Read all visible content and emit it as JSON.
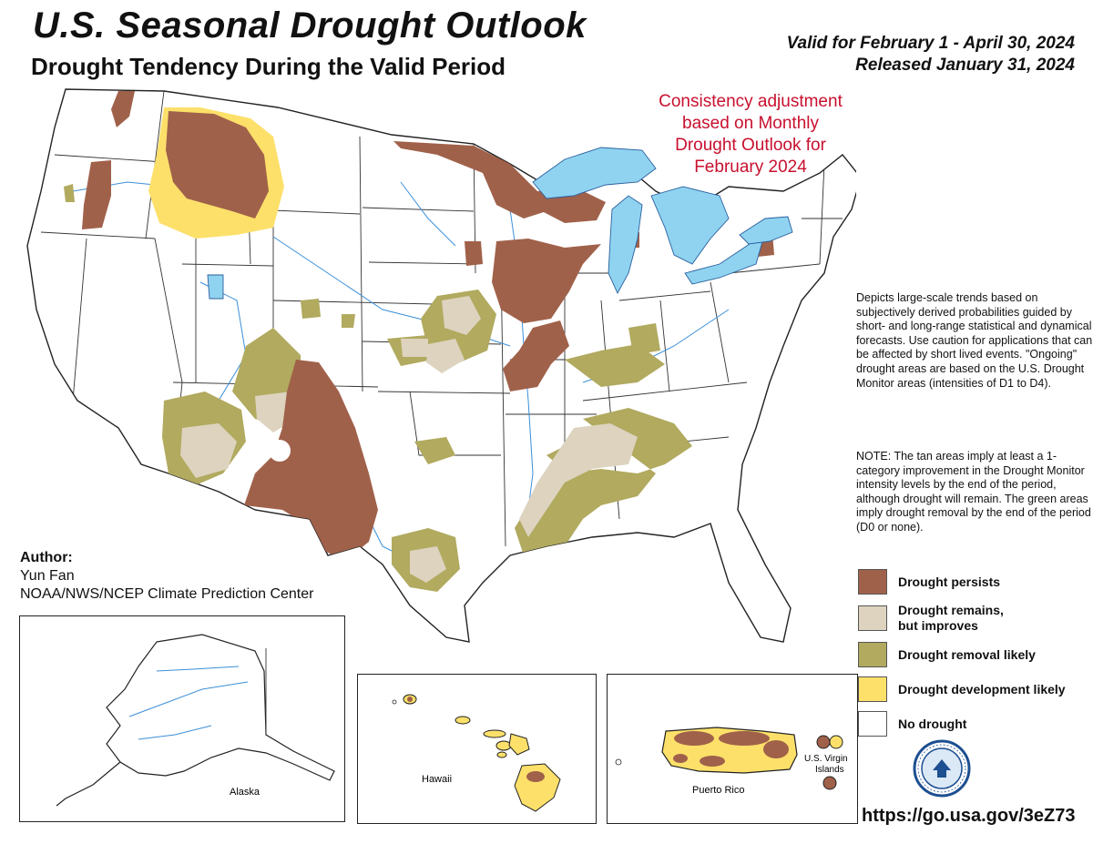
{
  "header": {
    "title": "U.S. Seasonal Drought Outlook",
    "subtitle": "Drought Tendency During the Valid Period",
    "valid_line": "Valid for February 1 - April 30, 2024",
    "released_line": "Released January 31, 2024"
  },
  "consistency_note": [
    "Consistency adjustment",
    "based on Monthly",
    "Drought Outlook for",
    "February 2024"
  ],
  "description": "Depicts large-scale trends based on subjectively derived probabilities guided by short- and long-range statistical and dynamical forecasts. Use caution for applications that can be affected by short lived events. \"Ongoing\" drought areas are based on the U.S. Drought Monitor areas (intensities of D1 to D4).",
  "note": "NOTE: The tan areas imply at least a 1-category improvement in the Drought Monitor intensity levels by the end of the period, although drought will remain. The green areas imply drought removal by the end of the period (D0 or none).",
  "author": {
    "label": "Author:",
    "name": "Yun Fan",
    "org": "NOAA/NWS/NCEP Climate Prediction Center"
  },
  "legend": [
    {
      "label": "Drought persists",
      "color": "#a0614a"
    },
    {
      "label": "Drought remains, but improves",
      "color": "#ddd3bf"
    },
    {
      "label": "Drought removal likely",
      "color": "#b1aa5f"
    },
    {
      "label": "Drought development likely",
      "color": "#fde06a"
    },
    {
      "label": "No drought",
      "color": "#ffffff"
    }
  ],
  "insets": {
    "alaska": "Alaska",
    "hawaii": "Hawaii",
    "puerto_rico": "Puerto Rico",
    "virgin_islands": [
      "U.S. Virgin",
      "Islands"
    ]
  },
  "url": "https://go.usa.gov/3eZ73",
  "colors": {
    "persists": "#a0614a",
    "improves": "#ddd3bf",
    "removal": "#b1aa5f",
    "development": "#fde06a",
    "water": "#8fd3f0",
    "river": "#3b8fd9",
    "title_red": "#c8102e"
  }
}
